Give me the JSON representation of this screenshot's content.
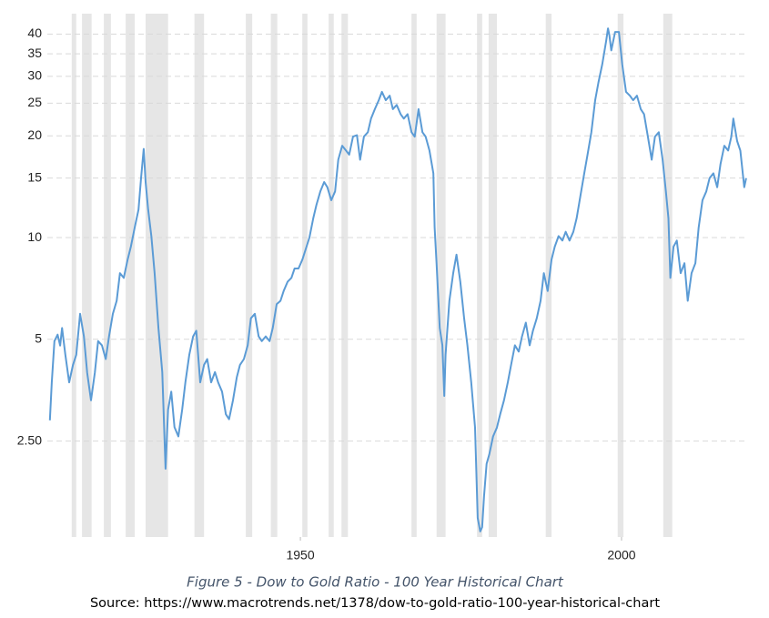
{
  "chart_data": {
    "type": "line",
    "caption": "Figure 5 - Dow to Gold Ratio - 100 Year Historical Chart",
    "source": "Source: https://www.macrotrends.net/1378/dow-to-gold-ratio-100-year-historical-chart",
    "log_scale_y": true,
    "grid": true,
    "color": "#5b9bd5",
    "band_color": "#e6e6e6",
    "xlim": [
      1910.6,
      2019.7
    ],
    "xticks": [
      1950,
      2000
    ],
    "ylim": [
      1.3,
      46
    ],
    "yticks": [
      {
        "value": 2.5,
        "label": "2.50"
      },
      5,
      10,
      15,
      20,
      25,
      30,
      35,
      40
    ],
    "recessions": [
      [
        1914.4,
        1915.1
      ],
      [
        1916.0,
        1917.5
      ],
      [
        1919.4,
        1920.5
      ],
      [
        1922.8,
        1924.2
      ],
      [
        1925.9,
        1929.4
      ],
      [
        1933.5,
        1935.0
      ],
      [
        1941.5,
        1942.5
      ],
      [
        1945.4,
        1946.4
      ],
      [
        1950.3,
        1951.1
      ],
      [
        1954.4,
        1955.2
      ],
      [
        1956.4,
        1957.4
      ],
      [
        1967.3,
        1968.1
      ],
      [
        1971.2,
        1972.6
      ],
      [
        1977.5,
        1978.3
      ],
      [
        1979.3,
        1980.6
      ],
      [
        1988.2,
        1989.1
      ],
      [
        1999.4,
        2000.3
      ],
      [
        2006.5,
        2007.9
      ]
    ],
    "x": [
      1911.0,
      1911.3,
      1911.7,
      1912.2,
      1912.6,
      1912.9,
      1913.4,
      1914.0,
      1914.6,
      1915.1,
      1915.7,
      1916.3,
      1916.8,
      1917.4,
      1918.0,
      1918.5,
      1919.1,
      1919.7,
      1920.2,
      1920.8,
      1921.4,
      1921.9,
      1922.5,
      1923.1,
      1923.6,
      1924.2,
      1924.8,
      1925.2,
      1925.6,
      1925.9,
      1926.3,
      1926.8,
      1927.3,
      1927.9,
      1928.5,
      1929.0,
      1929.4,
      1929.9,
      1930.4,
      1931.0,
      1931.6,
      1932.1,
      1932.7,
      1933.3,
      1933.8,
      1934.4,
      1935.0,
      1935.5,
      1936.1,
      1936.7,
      1937.2,
      1937.8,
      1938.4,
      1938.9,
      1939.5,
      1940.1,
      1940.6,
      1941.2,
      1941.8,
      1942.3,
      1942.9,
      1943.5,
      1944.0,
      1944.6,
      1945.2,
      1945.7,
      1946.3,
      1946.9,
      1947.4,
      1948.0,
      1948.6,
      1949.1,
      1949.7,
      1950.3,
      1950.8,
      1951.4,
      1952.0,
      1952.5,
      1953.1,
      1953.7,
      1954.2,
      1954.8,
      1955.4,
      1955.9,
      1956.5,
      1957.1,
      1957.6,
      1958.2,
      1958.8,
      1959.3,
      1959.9,
      1960.5,
      1961.0,
      1961.6,
      1962.2,
      1962.7,
      1963.3,
      1963.9,
      1964.4,
      1965.0,
      1965.6,
      1966.1,
      1966.7,
      1967.3,
      1967.8,
      1968.4,
      1969.0,
      1969.5,
      1970.1,
      1970.7,
      1970.9,
      1971.2,
      1971.7,
      1972.1,
      1972.4,
      1972.6,
      1973.2,
      1973.8,
      1974.3,
      1974.9,
      1975.5,
      1976.0,
      1976.6,
      1977.2,
      1977.6,
      1978.0,
      1978.3,
      1978.6,
      1979.0,
      1979.4,
      1980.0,
      1980.6,
      1981.1,
      1981.7,
      1982.3,
      1982.8,
      1983.4,
      1984.0,
      1984.5,
      1985.1,
      1985.7,
      1986.2,
      1986.8,
      1987.4,
      1987.9,
      1988.5,
      1989.1,
      1989.6,
      1990.2,
      1990.8,
      1991.3,
      1991.9,
      1992.5,
      1993.0,
      1993.6,
      1994.2,
      1994.7,
      1995.3,
      1995.9,
      1996.4,
      1997.0,
      1997.6,
      1997.9,
      1998.1,
      1998.4,
      1999.0,
      1999.6,
      2000.1,
      2000.7,
      2001.3,
      2001.8,
      2002.4,
      2003.0,
      2003.5,
      2004.1,
      2004.7,
      2005.2,
      2005.8,
      2006.4,
      2006.9,
      2007.3,
      2007.6,
      2008.1,
      2008.6,
      2009.2,
      2009.8,
      2010.3,
      2010.9,
      2011.5,
      2012.0,
      2012.6,
      2013.2,
      2013.7,
      2014.3,
      2014.9,
      2015.4,
      2016.0,
      2016.6,
      2017.1,
      2017.4,
      2018.0,
      2018.5,
      2019.1,
      2019.4
    ],
    "values": [
      2.88,
      3.73,
      4.94,
      5.16,
      4.79,
      5.4,
      4.5,
      3.73,
      4.2,
      4.5,
      5.95,
      5.1,
      3.98,
      3.3,
      3.98,
      4.94,
      4.8,
      4.37,
      5.1,
      5.95,
      6.5,
      7.85,
      7.6,
      8.6,
      9.4,
      10.7,
      12.1,
      15.0,
      18.3,
      14.6,
      12.1,
      10.1,
      7.85,
      5.4,
      4.0,
      2.07,
      3.1,
      3.5,
      2.75,
      2.58,
      3.1,
      3.73,
      4.5,
      5.1,
      5.3,
      3.73,
      4.2,
      4.37,
      3.73,
      4.0,
      3.73,
      3.5,
      3.0,
      2.9,
      3.3,
      3.86,
      4.2,
      4.37,
      4.8,
      5.77,
      5.95,
      5.1,
      4.94,
      5.1,
      4.94,
      5.4,
      6.35,
      6.5,
      6.95,
      7.4,
      7.6,
      8.1,
      8.1,
      8.6,
      9.2,
      10.0,
      11.4,
      12.5,
      13.7,
      14.6,
      14.1,
      12.9,
      13.7,
      17.0,
      18.7,
      18.1,
      17.6,
      19.9,
      20.1,
      17.0,
      19.9,
      20.5,
      22.5,
      24.0,
      25.5,
      27.0,
      25.5,
      26.3,
      24.0,
      24.7,
      23.2,
      22.5,
      23.2,
      20.5,
      19.9,
      24.0,
      20.5,
      19.9,
      18.1,
      15.5,
      10.7,
      8.4,
      5.4,
      4.8,
      3.4,
      4.5,
      6.5,
      7.85,
      8.9,
      7.4,
      5.77,
      4.8,
      3.73,
      2.74,
      1.48,
      1.35,
      1.39,
      1.72,
      2.14,
      2.28,
      2.58,
      2.74,
      3.0,
      3.3,
      3.73,
      4.2,
      4.8,
      4.6,
      5.1,
      5.6,
      4.8,
      5.3,
      5.77,
      6.5,
      7.85,
      6.95,
      8.6,
      9.4,
      10.1,
      9.8,
      10.4,
      9.8,
      10.4,
      11.4,
      13.3,
      15.5,
      17.6,
      20.5,
      25.5,
      28.8,
      32.6,
      38.1,
      41.6,
      39.7,
      35.8,
      40.6,
      40.6,
      32.6,
      27.0,
      26.3,
      25.5,
      26.3,
      24.0,
      23.2,
      19.9,
      17.0,
      19.9,
      20.5,
      17.0,
      13.7,
      11.4,
      7.6,
      9.4,
      9.8,
      7.85,
      8.4,
      6.5,
      7.85,
      8.4,
      10.7,
      12.9,
      13.7,
      15.0,
      15.5,
      14.1,
      16.5,
      18.7,
      18.1,
      19.9,
      22.5,
      19.3,
      18.1,
      14.1,
      15.0
    ]
  }
}
